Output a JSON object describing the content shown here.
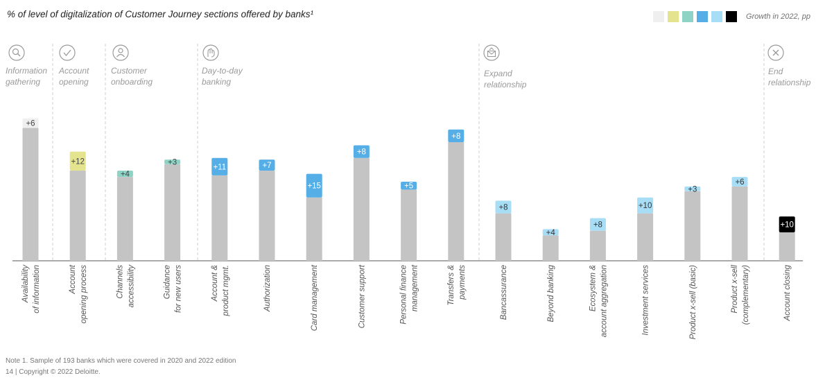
{
  "title": "% of level of digitalization of Customer Journey sections offered by banks¹",
  "legend": {
    "swatch_colors": [
      "#efefef",
      "#e4e48f",
      "#8fd3c6",
      "#55aee6",
      "#a8ddf6",
      "#000000"
    ],
    "label": "Growth in 2022, pp"
  },
  "footer": {
    "note": "Note 1. Sample of 193 banks which were covered in 2020 and 2022 edition",
    "copyright": "14  |  Copyright © 2022 Deloitte."
  },
  "stages": [
    {
      "label": [
        "Information",
        "gathering"
      ],
      "icon": "magnifier-icon"
    },
    {
      "label": [
        "Account",
        "opening"
      ],
      "icon": "checkmark-icon"
    },
    {
      "label": [
        "Customer",
        "onboarding"
      ],
      "icon": "person-icon"
    },
    {
      "label": [
        "Day-to-day",
        "banking"
      ],
      "icon": "hand-icon"
    },
    {
      "label": [
        "Expand",
        "relationship"
      ],
      "icon": "envelope-icon"
    },
    {
      "label": [
        "End",
        "relationship"
      ],
      "icon": "close-circle-icon"
    }
  ],
  "colors": {
    "base": "#c4c4c4",
    "yellow": "#e4e48f",
    "teal": "#8fd3c6",
    "blue": "#55aee6",
    "lightblue": "#a8ddf6",
    "black": "#000000",
    "divider": "#cfcfcf",
    "axis": "#777777",
    "stage_text": "#9a9a9a",
    "xlabel_text": "#555555"
  },
  "chart_data": {
    "type": "bar",
    "stacked": true,
    "categories": [
      "Availability of information",
      "Account opening process",
      "Channels accessibility",
      "Guidance for new users",
      "Account & product mgmt.",
      "Authorization",
      "Card management",
      "Customer support",
      "Personal finance management",
      "Transfers & payments",
      "Bancassurance",
      "Beyond banking",
      "Ecosystem & account aggregation",
      "Investment services",
      "Product x-sell (basic)",
      "Product x-sell (complementary)",
      "Account closing"
    ],
    "category_label_lines": [
      [
        "Availability",
        "of information"
      ],
      [
        "Account",
        "opening process"
      ],
      [
        "Channels",
        "accessibility"
      ],
      [
        "Guidance",
        "for new users"
      ],
      [
        "Account &",
        "product mgmt."
      ],
      [
        "Authorization"
      ],
      [
        "Card management"
      ],
      [
        "Customer support"
      ],
      [
        "Personal finance",
        "management"
      ],
      [
        "Transfers &",
        "payments"
      ],
      [
        "Bancassurance"
      ],
      [
        "Beyond banking"
      ],
      [
        "Ecosystem &",
        "account aggregation"
      ],
      [
        "Investment services"
      ],
      [
        "Product x-sell (basic)"
      ],
      [
        "Product x-sell",
        "(complementary)"
      ],
      [
        "Account closing"
      ]
    ],
    "series": [
      {
        "values": [
          84,
          57,
          53,
          61,
          54,
          57,
          40,
          65,
          45,
          75,
          30,
          16,
          19,
          30,
          44,
          47,
          18
        ]
      },
      {
        "name": "Growth in 2022, pp",
        "values": [
          6,
          12,
          4,
          3,
          11,
          7,
          15,
          8,
          5,
          8,
          8,
          4,
          8,
          10,
          3,
          6,
          10
        ]
      }
    ],
    "growth_labels": [
      "+6",
      "+12",
      "+4",
      "+3",
      "+11",
      "+7",
      "+15",
      "+8",
      "+5",
      "+8",
      "+8",
      "+4",
      "+8",
      "+10",
      "+3",
      "+6",
      "+10"
    ],
    "growth_colors": [
      "#efefef",
      "#e4e48f",
      "#8fd3c6",
      "#8fd3c6",
      "#55aee6",
      "#55aee6",
      "#55aee6",
      "#55aee6",
      "#55aee6",
      "#55aee6",
      "#a8ddf6",
      "#a8ddf6",
      "#a8ddf6",
      "#a8ddf6",
      "#a8ddf6",
      "#a8ddf6",
      "#000000"
    ],
    "growth_label_colors": [
      "#444444",
      "#444444",
      "#444444",
      "#444444",
      "#ffffff",
      "#ffffff",
      "#ffffff",
      "#ffffff",
      "#ffffff",
      "#ffffff",
      "#333333",
      "#333333",
      "#333333",
      "#333333",
      "#333333",
      "#333333",
      "#ffffff"
    ],
    "ylim": [
      0,
      100
    ],
    "grid": false,
    "legend": "top-right"
  }
}
